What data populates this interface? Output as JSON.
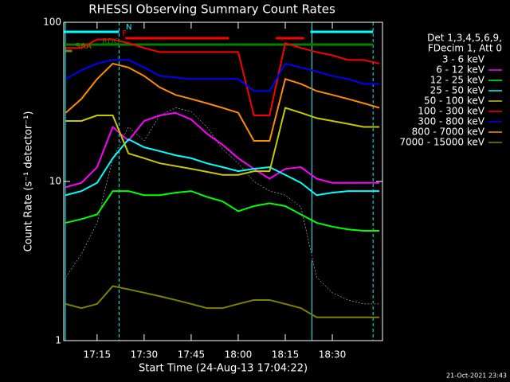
{
  "chart_data": {
    "type": "line",
    "title": "RHESSI Observing Summary Count Rates",
    "xlabel": "Start Time (24-Aug-13 17:04:22)",
    "ylabel": "Count Rate (s⁻¹ detector⁻¹)",
    "footer": "21-Oct-2021 23:43",
    "legend_header": [
      "Det 1,3,4,5,6,9,",
      "FDecim 1, Att 0"
    ],
    "yscale": "log",
    "ylim": [
      1,
      100
    ],
    "yticks": [
      1,
      10,
      100
    ],
    "xlim": [
      "17:04:22",
      "18:46"
    ],
    "xticks": [
      "17:15",
      "17:30",
      "17:45",
      "18:00",
      "18:15",
      "18:30"
    ],
    "x": [
      "17:05",
      "17:10",
      "17:15",
      "17:20",
      "17:25",
      "17:30",
      "17:35",
      "17:40",
      "17:45",
      "17:50",
      "17:55",
      "18:00",
      "18:05",
      "18:10",
      "18:15",
      "18:20",
      "18:25",
      "18:30",
      "18:35",
      "18:40",
      "18:45"
    ],
    "series": [
      {
        "name": "3 - 6 keV",
        "color": "#000000",
        "values": [
          2.5,
          3.5,
          5.5,
          14,
          22,
          18,
          26,
          29,
          27.5,
          22,
          16,
          13,
          10,
          8.7,
          8.2,
          6.9,
          2.5,
          2,
          1.8,
          1.7,
          1.7
        ]
      },
      {
        "name": "6 - 12 keV",
        "color": "#ff00ff",
        "values": [
          9.2,
          9.8,
          12.3,
          22,
          18,
          24,
          26,
          27,
          24.5,
          20,
          17,
          14,
          12,
          10.4,
          12,
          12.3,
          10.4,
          9.8,
          9.8,
          9.8,
          9.8
        ]
      },
      {
        "name": "12 - 25 keV",
        "color": "#00ff00",
        "values": [
          5.5,
          5.8,
          6.2,
          8.7,
          8.7,
          8.2,
          8.2,
          8.5,
          8.7,
          8,
          7.5,
          6.5,
          7,
          7.3,
          7,
          6.2,
          5.5,
          5.2,
          5,
          4.9,
          4.9
        ]
      },
      {
        "name": "25 - 50 keV",
        "color": "#00ffff",
        "values": [
          8.2,
          8.7,
          9.8,
          14,
          18.4,
          16.4,
          15.5,
          14.6,
          14,
          13,
          12.3,
          11.6,
          12,
          12.3,
          11,
          9.8,
          8.2,
          8.5,
          8.7,
          8.7,
          8.7
        ]
      },
      {
        "name": "50 - 100 keV",
        "color": "#c8c800",
        "values": [
          24,
          24,
          26,
          26,
          15,
          14,
          13,
          12.5,
          12,
          11.5,
          11,
          11,
          11.6,
          11.6,
          29,
          27,
          25,
          24,
          23,
          22,
          22
        ]
      },
      {
        "name": "100 - 300 keV",
        "color": "#ff0000",
        "values": [
          69,
          69,
          78,
          78,
          74,
          69,
          65,
          65,
          65,
          65,
          65,
          65,
          26,
          26,
          74,
          69,
          65,
          62,
          58,
          58,
          55
        ]
      },
      {
        "name": "300 - 800 keV",
        "color": "#0000ff",
        "values": [
          44,
          50,
          55,
          58,
          58,
          52,
          46,
          45,
          44,
          44,
          44,
          44,
          37,
          37,
          55,
          52,
          49,
          46,
          44,
          41,
          41
        ]
      },
      {
        "name": "800 - 7000 keV",
        "color": "#ff8c00",
        "values": [
          27,
          33,
          44,
          55,
          52,
          46,
          39,
          35,
          33,
          31,
          29,
          27,
          18,
          18,
          44,
          41,
          37,
          35,
          33,
          31,
          29
        ]
      },
      {
        "name": "7000 - 15000 keV",
        "color": "#808000",
        "values": [
          1.7,
          1.6,
          1.7,
          2.2,
          2.1,
          2,
          1.9,
          1.8,
          1.7,
          1.6,
          1.6,
          1.7,
          1.8,
          1.8,
          1.7,
          1.6,
          1.4,
          1.4,
          1.4,
          1.4,
          1.4
        ]
      }
    ],
    "flags": [
      {
        "label": "N",
        "color": "#00ffff",
        "intervals": [
          [
            "17:04:22",
            "17:22"
          ],
          [
            "18:23",
            "18:43"
          ]
        ]
      },
      {
        "label": "F",
        "color": "#ff0000",
        "intervals": [
          [
            "17:24",
            "17:57"
          ],
          [
            "18:12",
            "18:21"
          ]
        ]
      },
      {
        "label": "RDO",
        "color": "#008000",
        "intervals": [
          [
            "17:04:22",
            "18:43"
          ]
        ]
      },
      {
        "label": "SAA",
        "color": "#808000",
        "intervals": [
          [
            "17:05",
            "17:07"
          ]
        ]
      }
    ]
  }
}
